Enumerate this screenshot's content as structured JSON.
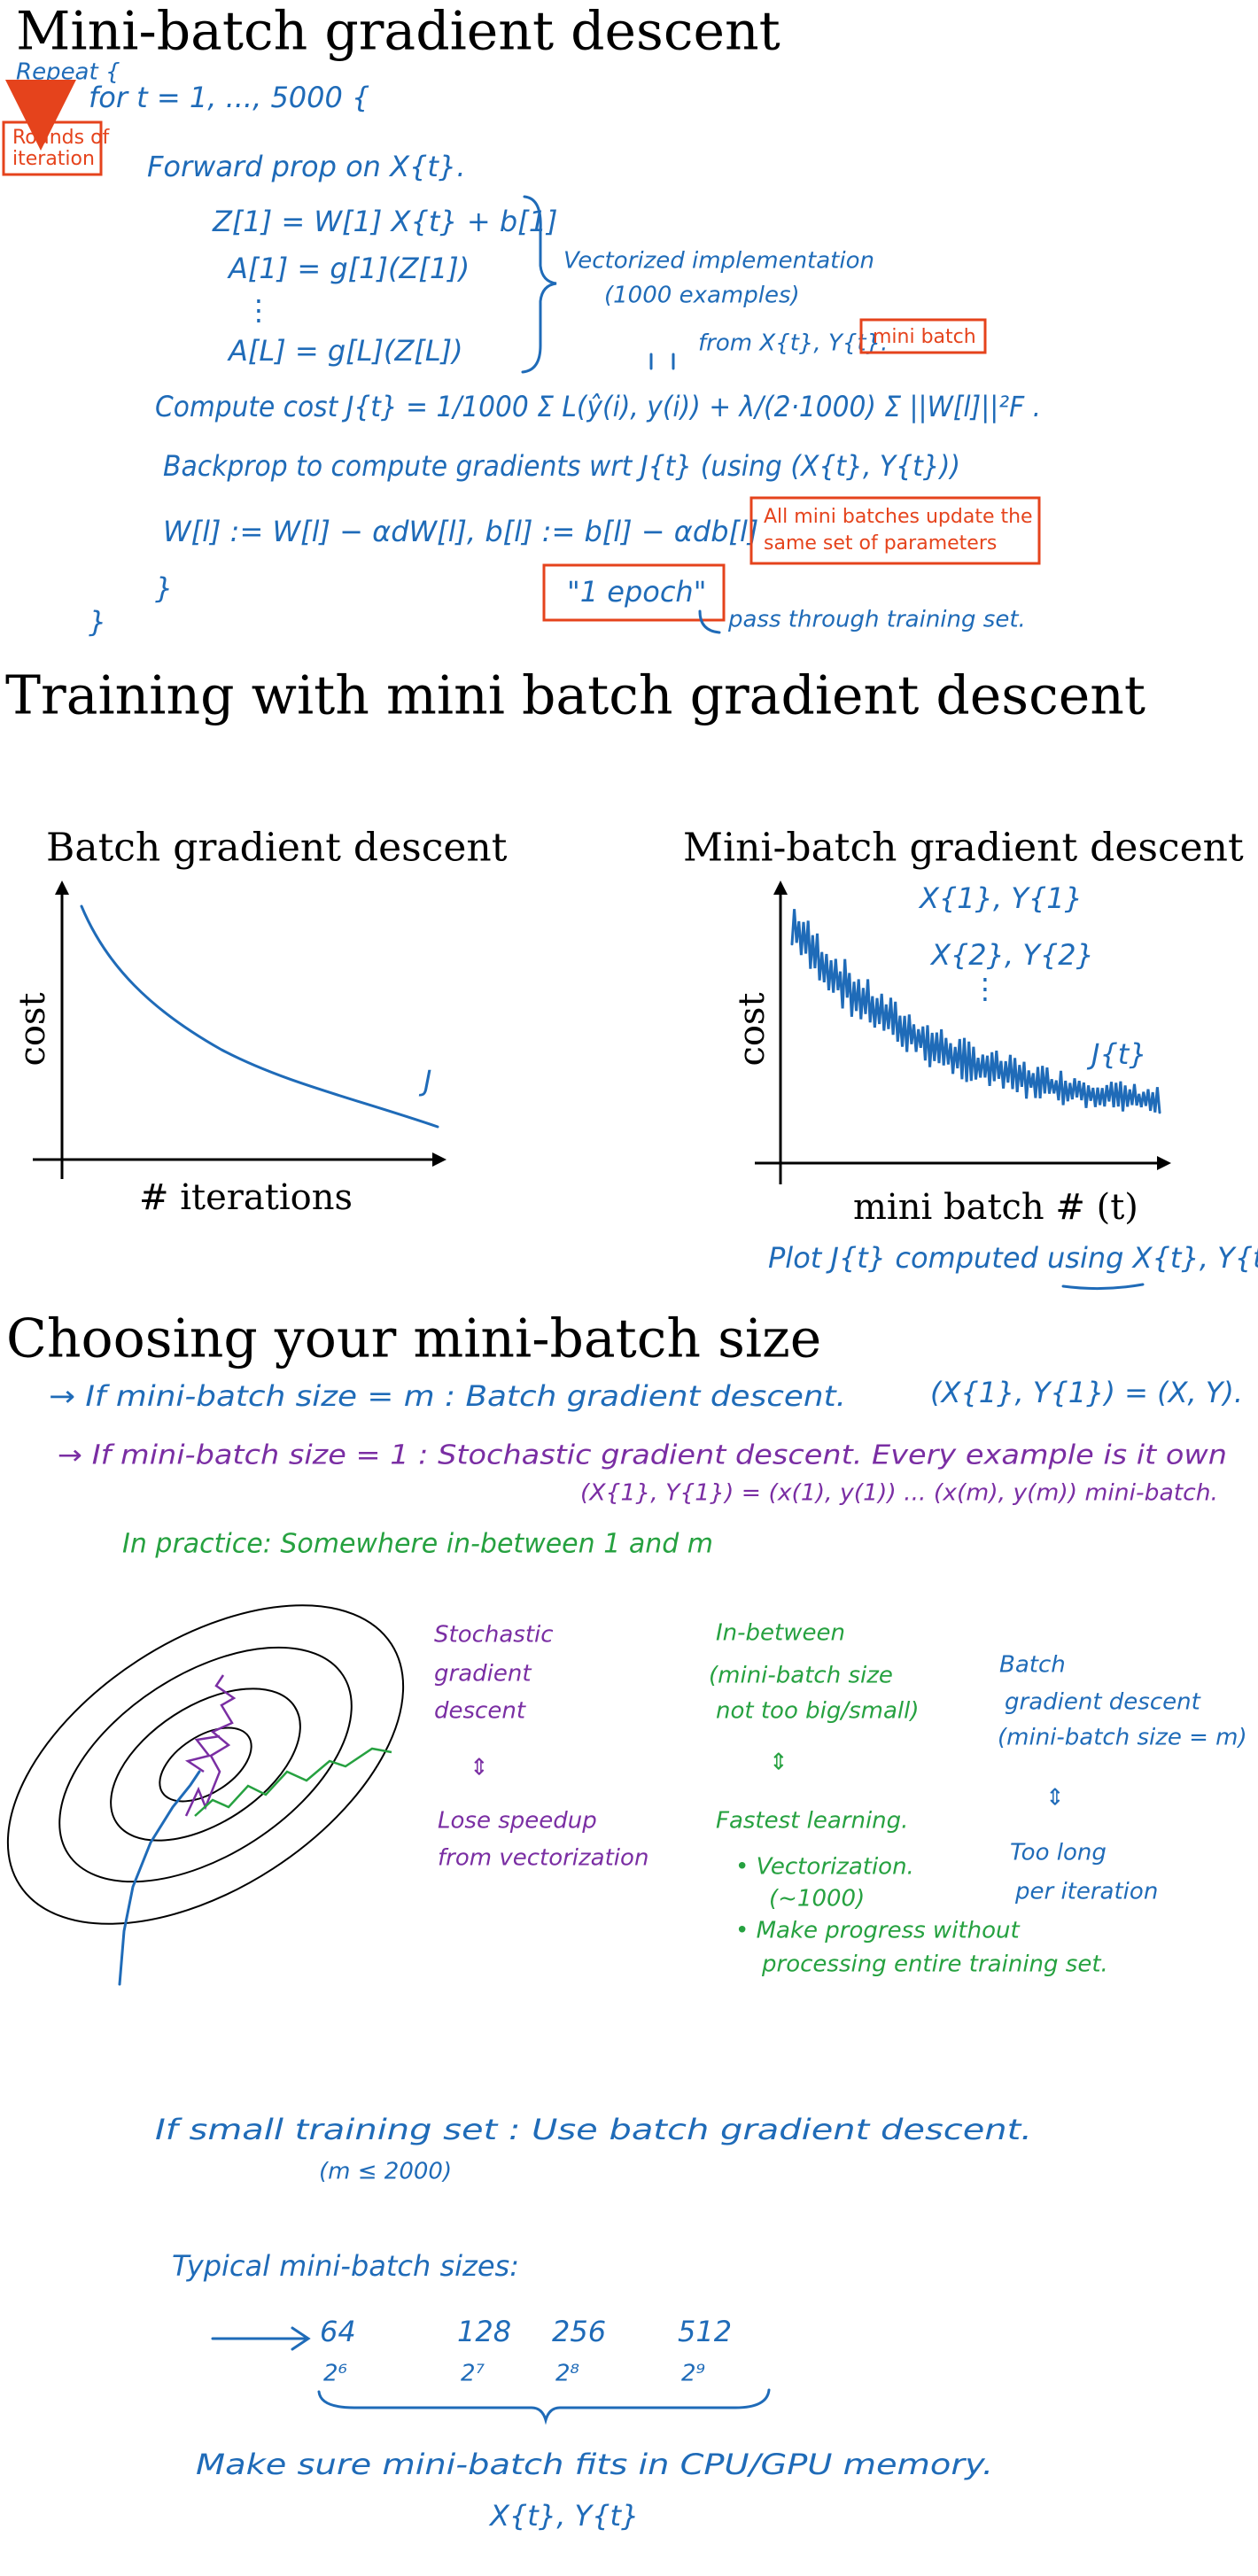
{
  "section1": {
    "title": "Mini-batch gradient descent",
    "repeat": "Repeat {",
    "loop": "for  t = 1, ..., 5000  {",
    "callout_rounds": [
      "Rounds of",
      "iteration"
    ],
    "forward": "Forward prop on X{t}.",
    "eq_z": "Z[1] = W[1] X{t} + b[1]",
    "eq_a1": "A[1] = g[1](Z[1])",
    "vdots": "⋮",
    "eq_al": "A[L] = g[L](Z[L])",
    "vectorized": [
      "Vectorized implementation",
      "(1000 examples)"
    ],
    "from": "from X{t}, Y{t}.",
    "callout_minibatch": "mini batch",
    "cost": "Compute cost  J{t} = 1/1000 Σ L(ŷ(i), y(i))  +  λ/(2·1000) Σ ||W[l]||²F .",
    "backprop": "Backprop to compute gradients wrt J{t}  (using (X{t}, Y{t}))",
    "update": "W[l] := W[l] − αdW[l],   b[l] := b[l] − αdb[l]",
    "callout_update": [
      "All mini batches update the",
      "same set of parameters"
    ],
    "close_inner": "}",
    "close_outer": "}",
    "callout_epoch": "\"1 epoch\"",
    "epoch_note": "pass through training set."
  },
  "section2": {
    "title": "Training with mini batch gradient descent",
    "left": {
      "title": "Batch gradient descent",
      "ylabel": "cost",
      "xlabel": "# iterations",
      "curve_label": "J"
    },
    "right": {
      "title": "Mini-batch gradient descent",
      "ylabel": "cost",
      "xlabel": "mini batch # (t)",
      "notes": [
        "X{1}, Y{1}",
        "X{2}, Y{2}",
        "⋮"
      ],
      "curve_label": "J{t}",
      "plot_note": "Plot J{t} computed using X{t}, Y{t}"
    }
  },
  "section3": {
    "title": "Choosing your mini-batch size",
    "case_m": "→ If   mini-batch size = m  :  Batch gradient descent.",
    "case_m_eq": "(X{1}, Y{1}) = (X, Y).",
    "case_1": "→ If   mini-batch size = 1  :  Stochastic gradient descent.   Every example is it own",
    "case_1_b": "(X{1}, Y{1}) = (x(1), y(1))  ...  (x(m), y(m))  mini-batch.",
    "practice": "In practice:  Somewhere in-between  1  and  m",
    "stochastic": [
      "Stochastic",
      "gradient",
      "descent",
      "⇕",
      "Lose speedup",
      "from vectorization"
    ],
    "inbetween": [
      "In-between",
      "(mini-batch size",
      "not too big/small)",
      "⇕",
      "Fastest learning.",
      "• Vectorization.",
      "(~1000)",
      "• Make progress without",
      "processing entire training set."
    ],
    "batch": [
      "Batch",
      "gradient descent",
      "(mini-batch size = m)",
      "⇕",
      "Too long",
      "per iteration"
    ],
    "small": "If   small training set  :  Use  batch  gradient  descent.",
    "small_cond": "(m ≤ 2000)",
    "typical": "Typical   mini-batch  sizes:",
    "sizes": [
      64,
      128,
      256,
      512
    ],
    "powers": [
      "2⁶",
      "2⁷",
      "2⁸",
      "2⁹"
    ],
    "memory": "Make  sure  mini-batch  fits  in  CPU/GPU  memory.",
    "memory_xy": "X{t}, Y{t}"
  }
}
